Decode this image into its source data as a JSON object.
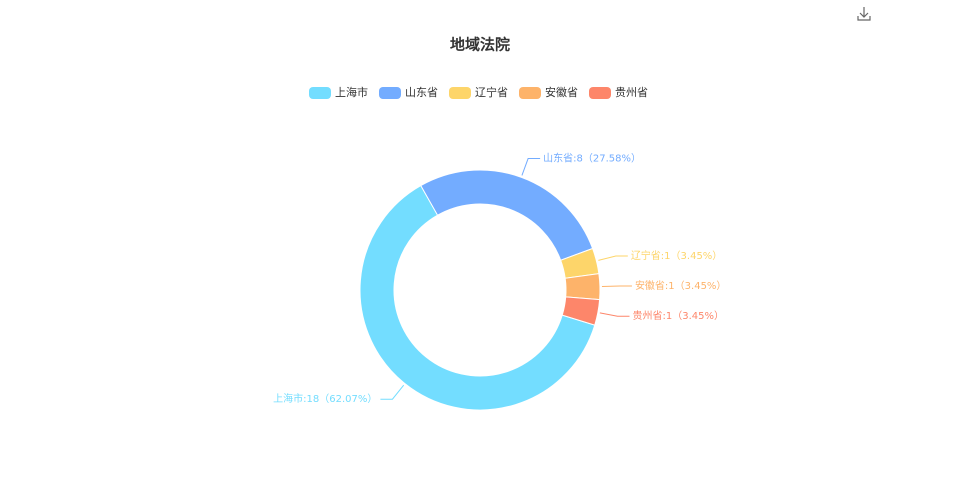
{
  "chart_data": {
    "type": "pie",
    "title": "地域法院",
    "categories": [
      "上海市",
      "山东省",
      "辽宁省",
      "安徽省",
      "贵州省"
    ],
    "values": [
      18,
      8,
      1,
      1,
      1
    ],
    "value_labels": [
      "上海市:18（62.07%）",
      "山东省:8（27.58%）",
      "辽宁省:1（3.45%）",
      "安徽省:1（3.45%）",
      "贵州省:1（3.45%）"
    ],
    "colors": [
      "#73ddff",
      "#73acff",
      "#fdd56a",
      "#fdb36a",
      "#fd866a"
    ],
    "legend": "top"
  }
}
